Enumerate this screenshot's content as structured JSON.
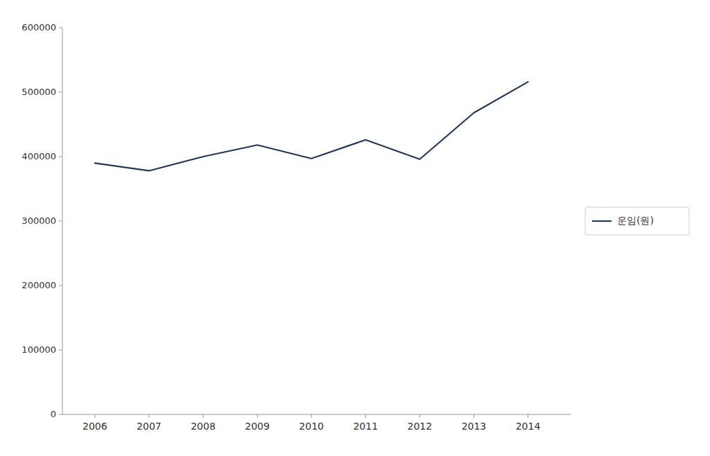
{
  "chart_data": {
    "type": "line",
    "x": [
      2006,
      2007,
      2008,
      2009,
      2010,
      2011,
      2012,
      2013,
      2014
    ],
    "series": [
      {
        "name": "운임(원)",
        "color": "#1F3864",
        "values": [
          390000,
          378000,
          400000,
          418000,
          397000,
          426000,
          396000,
          468000,
          516000
        ]
      }
    ],
    "xlim": [
      2005.4,
      2014.8
    ],
    "xticks": [
      2006,
      2007,
      2008,
      2009,
      2010,
      2011,
      2012,
      2013,
      2014
    ],
    "ylim": [
      0,
      600000
    ],
    "yticks": [
      0,
      100000,
      200000,
      300000,
      400000,
      500000,
      600000
    ],
    "grid": false,
    "legend": "right"
  }
}
